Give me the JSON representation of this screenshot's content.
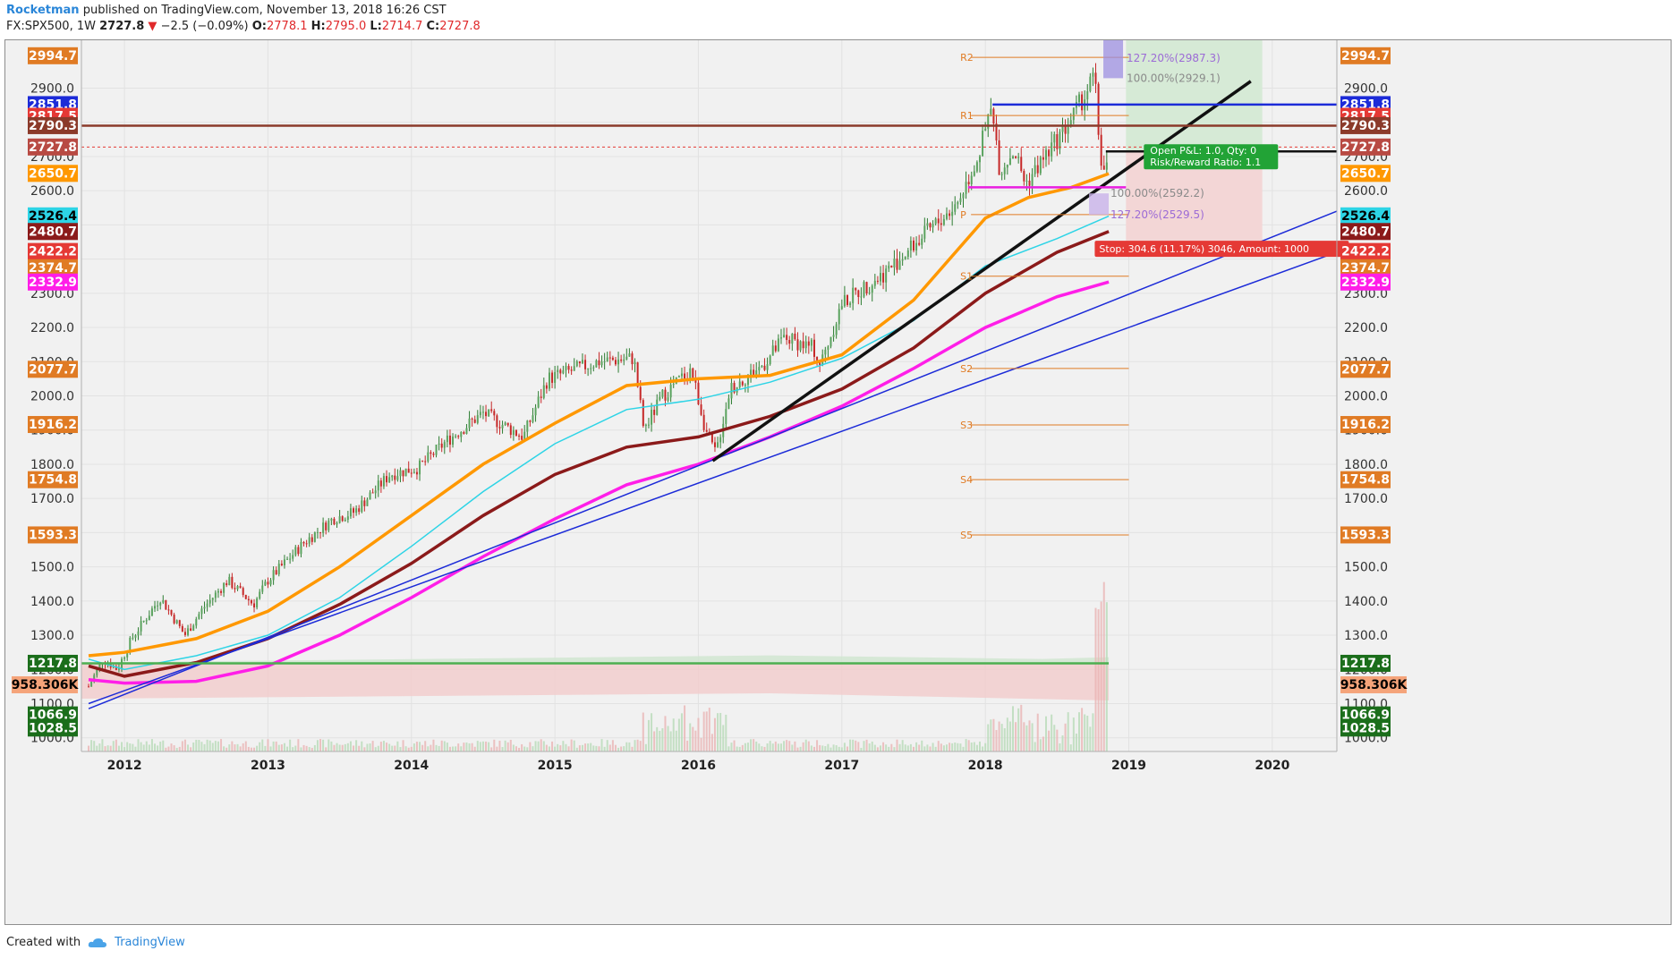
{
  "header": {
    "author": "Rocketman",
    "published": "published on TradingView.com, November 13, 2018 16:26 CST",
    "symbol": "FX:SPX500, 1W",
    "last": "2727.8",
    "change": "−2.5 (−0.09%)",
    "o_label": "O:",
    "o": "2778.1",
    "h_label": "H:",
    "h": "2795.0",
    "l_label": "L:",
    "l": "2714.7",
    "c_label": "C:",
    "c": "2727.8",
    "down_color": "#e0292b"
  },
  "footer": {
    "created_with": "Created with",
    "brand": "TradingView"
  },
  "chart_data": {
    "type": "candlestick",
    "title": "",
    "xlabel": "",
    "ylabel": "",
    "ylim": [
      960,
      3040
    ],
    "y_ticks": [
      "1000.0",
      "1100.0",
      "1200.0",
      "1300.0",
      "1400.0",
      "1500.0",
      "1600.0",
      "1700.0",
      "1800.0",
      "1900.0",
      "2000.0",
      "2100.0",
      "2200.0",
      "2300.0",
      "2400.0",
      "2500.0",
      "2600.0",
      "2700.0",
      "2800.0",
      "2900.0"
    ],
    "x_tick_labels": [
      "2012",
      "2013",
      "2014",
      "2015",
      "2016",
      "2017",
      "2018",
      "2019",
      "2020"
    ],
    "x_tick_years": [
      2012,
      2013,
      2014,
      2015,
      2016,
      2017,
      2018,
      2019,
      2020
    ],
    "x_range": [
      2011.7,
      2020.45
    ],
    "colors": {
      "up": "#2e7d32",
      "down": "#c62828",
      "grid": "#e2e2e2"
    },
    "price_anchors": [
      [
        2011.75,
        1150
      ],
      [
        2011.85,
        1230
      ],
      [
        2011.95,
        1200
      ],
      [
        2012.05,
        1290
      ],
      [
        2012.25,
        1410
      ],
      [
        2012.42,
        1300
      ],
      [
        2012.55,
        1380
      ],
      [
        2012.72,
        1460
      ],
      [
        2012.9,
        1390
      ],
      [
        2013.0,
        1460
      ],
      [
        2013.25,
        1570
      ],
      [
        2013.45,
        1640
      ],
      [
        2013.6,
        1660
      ],
      [
        2013.85,
        1770
      ],
      [
        2014.05,
        1790
      ],
      [
        2014.25,
        1870
      ],
      [
        2014.5,
        1950
      ],
      [
        2014.78,
        1880
      ],
      [
        2014.95,
        2050
      ],
      [
        2015.3,
        2100
      ],
      [
        2015.55,
        2110
      ],
      [
        2015.62,
        1900
      ],
      [
        2015.75,
        2000
      ],
      [
        2015.95,
        2080
      ],
      [
        2016.05,
        1900
      ],
      [
        2016.12,
        1830
      ],
      [
        2016.22,
        2020
      ],
      [
        2016.45,
        2090
      ],
      [
        2016.6,
        2170
      ],
      [
        2016.8,
        2140
      ],
      [
        2016.85,
        2090
      ],
      [
        2017.0,
        2270
      ],
      [
        2017.3,
        2360
      ],
      [
        2017.55,
        2460
      ],
      [
        2017.8,
        2560
      ],
      [
        2017.95,
        2700
      ],
      [
        2018.05,
        2850
      ],
      [
        2018.1,
        2660
      ],
      [
        2018.2,
        2720
      ],
      [
        2018.28,
        2620
      ],
      [
        2018.45,
        2720
      ],
      [
        2018.6,
        2810
      ],
      [
        2018.72,
        2900
      ],
      [
        2018.76,
        2940
      ],
      [
        2018.8,
        2700
      ],
      [
        2018.84,
        2640
      ],
      [
        2018.86,
        2730
      ]
    ],
    "series": [
      {
        "name": "",
        "color": "#ff9800",
        "points": [
          [
            2011.75,
            1240
          ],
          [
            2012.0,
            1250
          ],
          [
            2012.5,
            1290
          ],
          [
            2013.0,
            1370
          ],
          [
            2013.5,
            1500
          ],
          [
            2014.0,
            1650
          ],
          [
            2014.5,
            1800
          ],
          [
            2015.0,
            1920
          ],
          [
            2015.5,
            2030
          ],
          [
            2016.0,
            2050
          ],
          [
            2016.5,
            2060
          ],
          [
            2017.0,
            2120
          ],
          [
            2017.5,
            2280
          ],
          [
            2018.0,
            2520
          ],
          [
            2018.3,
            2580
          ],
          [
            2018.6,
            2610
          ],
          [
            2018.86,
            2650
          ]
        ]
      },
      {
        "name": "",
        "color": "#2dd4e6",
        "points": [
          [
            2011.75,
            1230
          ],
          [
            2012.0,
            1200
          ],
          [
            2012.5,
            1240
          ],
          [
            2013.0,
            1300
          ],
          [
            2013.5,
            1410
          ],
          [
            2014.0,
            1560
          ],
          [
            2014.5,
            1720
          ],
          [
            2015.0,
            1860
          ],
          [
            2015.5,
            1960
          ],
          [
            2016.0,
            1990
          ],
          [
            2016.5,
            2040
          ],
          [
            2017.0,
            2110
          ],
          [
            2017.5,
            2220
          ],
          [
            2018.0,
            2380
          ],
          [
            2018.5,
            2460
          ],
          [
            2018.86,
            2526
          ]
        ]
      },
      {
        "name": "",
        "color": "#8b1a1a",
        "points": [
          [
            2011.75,
            1210
          ],
          [
            2012.0,
            1180
          ],
          [
            2012.5,
            1220
          ],
          [
            2013.0,
            1290
          ],
          [
            2013.5,
            1390
          ],
          [
            2014.0,
            1510
          ],
          [
            2014.5,
            1650
          ],
          [
            2015.0,
            1770
          ],
          [
            2015.5,
            1850
          ],
          [
            2016.0,
            1880
          ],
          [
            2016.5,
            1940
          ],
          [
            2017.0,
            2020
          ],
          [
            2017.5,
            2140
          ],
          [
            2018.0,
            2300
          ],
          [
            2018.5,
            2420
          ],
          [
            2018.86,
            2481
          ]
        ]
      },
      {
        "name": "",
        "color": "#ff1ee8",
        "points": [
          [
            2011.75,
            1170
          ],
          [
            2012.0,
            1160
          ],
          [
            2012.5,
            1165
          ],
          [
            2013.0,
            1210
          ],
          [
            2013.5,
            1300
          ],
          [
            2014.0,
            1410
          ],
          [
            2014.5,
            1530
          ],
          [
            2015.0,
            1640
          ],
          [
            2015.5,
            1740
          ],
          [
            2016.0,
            1800
          ],
          [
            2016.5,
            1880
          ],
          [
            2017.0,
            1970
          ],
          [
            2017.5,
            2080
          ],
          [
            2018.0,
            2200
          ],
          [
            2018.5,
            2290
          ],
          [
            2018.86,
            2333
          ]
        ]
      }
    ],
    "trendlines": [
      {
        "color": "#1c2bd8",
        "from": [
          2011.75,
          1085
        ],
        "to": [
          2020.45,
          2540
        ]
      },
      {
        "color": "#1c2bd8",
        "from": [
          2011.75,
          1100
        ],
        "to": [
          2020.45,
          2420
        ]
      },
      {
        "color": "#111111",
        "from": [
          2016.1,
          1810
        ],
        "to": [
          2019.85,
          2920
        ]
      }
    ],
    "horizontal_lines": [
      {
        "price": 2790.3,
        "color": "#8b3a2a",
        "from": 2011.7,
        "to": 2020.45,
        "style": "solid"
      },
      {
        "price": 2727.8,
        "color": "#e53935",
        "from": 2011.7,
        "to": 2020.45,
        "style": "dashed"
      },
      {
        "price": 2851.8,
        "color": "#1c2bd8",
        "from": 2018.05,
        "to": 2020.45,
        "style": "solid"
      },
      {
        "price": 2715,
        "color": "#111111",
        "from": 2018.84,
        "to": 2020.45,
        "style": "solid"
      },
      {
        "price": 2610,
        "color": "#e91ee0",
        "from": 2017.88,
        "to": 2018.98,
        "style": "solid"
      },
      {
        "price": 1217.8,
        "color": "#4caf50",
        "from": 2011.7,
        "to": 2018.86,
        "style": "solid"
      }
    ],
    "pivots": [
      {
        "label": "R2",
        "price": 2990
      },
      {
        "label": "R1",
        "price": 2820
      },
      {
        "label": "P",
        "price": 2530
      },
      {
        "label": "S1",
        "price": 2350
      },
      {
        "label": "S2",
        "price": 2080
      },
      {
        "label": "S3",
        "price": 1915
      },
      {
        "label": "S4",
        "price": 1755
      },
      {
        "label": "S5",
        "price": 1593
      }
    ],
    "pivot_x_range": [
      2017.9,
      2019.0
    ],
    "fib_annotations": [
      {
        "text": "127.20%(2987.3)",
        "price": 2987.3,
        "color": "#9c6bd6"
      },
      {
        "text": "100.00%(2929.1)",
        "price": 2929.1,
        "color": "#8a8a8a"
      },
      {
        "text": "100.00%(2592.2)",
        "price": 2592.2,
        "color": "#8a8a8a"
      },
      {
        "text": "127.20%(2529.5)",
        "price": 2529.5,
        "color": "#9c6bd6"
      }
    ],
    "position": {
      "entry": 2715,
      "target": 3040,
      "stop": 2430,
      "x_from": 2018.98,
      "x_to": 2019.93,
      "pnl_text": "Open P&L: 1.0, Qty: 0",
      "rr_text": "Risk/Reward Ratio: 1.1",
      "stop_text": "Stop: 304.6 (11.17%) 3046, Amount: 1000"
    },
    "price_tags_left": [
      {
        "text": "2994.7",
        "price": 2994.7,
        "bg": "#e07b24",
        "fg": "#ffffff"
      },
      {
        "text": "2851.8",
        "price": 2851.8,
        "bg": "#1c2bd8",
        "fg": "#ffffff"
      },
      {
        "text": "2817.5",
        "price": 2817.5,
        "bg": "#e53935",
        "fg": "#ffffff"
      },
      {
        "text": "2790.3",
        "price": 2790.3,
        "bg": "#8b3a2a",
        "fg": "#ffffff"
      },
      {
        "text": "2727.8",
        "price": 2727.8,
        "bg": "#b84a43",
        "fg": "#ffffff"
      },
      {
        "text": "2650.7",
        "price": 2650.7,
        "bg": "#ff9800",
        "fg": "#ffffff"
      },
      {
        "text": "2526.4",
        "price": 2526.4,
        "bg": "#2dd4e6",
        "fg": "#000000"
      },
      {
        "text": "2480.7",
        "price": 2480.7,
        "bg": "#8b1a1a",
        "fg": "#ffffff"
      },
      {
        "text": "2422.2",
        "price": 2422.2,
        "bg": "#e53935",
        "fg": "#ffffff"
      },
      {
        "text": "2374.7",
        "price": 2374.7,
        "bg": "#e07b24",
        "fg": "#ffffff"
      },
      {
        "text": "2332.9",
        "price": 2332.9,
        "bg": "#ff1ee8",
        "fg": "#ffffff"
      },
      {
        "text": "2077.7",
        "price": 2077.7,
        "bg": "#e07b24",
        "fg": "#ffffff"
      },
      {
        "text": "1916.2",
        "price": 1916.2,
        "bg": "#e07b24",
        "fg": "#ffffff"
      },
      {
        "text": "1754.8",
        "price": 1754.8,
        "bg": "#e07b24",
        "fg": "#ffffff"
      },
      {
        "text": "1593.3",
        "price": 1593.3,
        "bg": "#e07b24",
        "fg": "#ffffff"
      },
      {
        "text": "1217.8",
        "price": 1217.8,
        "bg": "#1b6e1b",
        "fg": "#ffffff"
      },
      {
        "text": "958.306K",
        "price": 1155,
        "bg": "#f5a47a",
        "fg": "#000000"
      },
      {
        "text": "1066.9",
        "price": 1066.9,
        "bg": "#1b6e1b",
        "fg": "#ffffff"
      },
      {
        "text": "1028.5",
        "price": 1028.5,
        "bg": "#1b6e1b",
        "fg": "#ffffff"
      }
    ],
    "price_tags_right": [
      {
        "text": "2994.7",
        "price": 2994.7,
        "bg": "#e07b24",
        "fg": "#ffffff"
      },
      {
        "text": "2851.8",
        "price": 2851.8,
        "bg": "#1c2bd8",
        "fg": "#ffffff"
      },
      {
        "text": "2817.5",
        "price": 2817.5,
        "bg": "#e53935",
        "fg": "#ffffff"
      },
      {
        "text": "2790.3",
        "price": 2790.3,
        "bg": "#8b3a2a",
        "fg": "#ffffff"
      },
      {
        "text": "2727.8",
        "price": 2727.8,
        "bg": "#b84a43",
        "fg": "#ffffff"
      },
      {
        "text": "2650.7",
        "price": 2650.7,
        "bg": "#ff9800",
        "fg": "#ffffff"
      },
      {
        "text": "2526.4",
        "price": 2526.4,
        "bg": "#2dd4e6",
        "fg": "#000000"
      },
      {
        "text": "2480.7",
        "price": 2480.7,
        "bg": "#8b1a1a",
        "fg": "#ffffff"
      },
      {
        "text": "2422.2",
        "price": 2422.2,
        "bg": "#e53935",
        "fg": "#ffffff"
      },
      {
        "text": "2374.7",
        "price": 2374.7,
        "bg": "#e07b24",
        "fg": "#ffffff"
      },
      {
        "text": "2332.9",
        "price": 2332.9,
        "bg": "#ff1ee8",
        "fg": "#ffffff"
      },
      {
        "text": "2077.7",
        "price": 2077.7,
        "bg": "#e07b24",
        "fg": "#ffffff"
      },
      {
        "text": "1916.2",
        "price": 1916.2,
        "bg": "#e07b24",
        "fg": "#ffffff"
      },
      {
        "text": "1754.8",
        "price": 1754.8,
        "bg": "#e07b24",
        "fg": "#ffffff"
      },
      {
        "text": "1593.3",
        "price": 1593.3,
        "bg": "#e07b24",
        "fg": "#ffffff"
      },
      {
        "text": "1217.8",
        "price": 1217.8,
        "bg": "#1b6e1b",
        "fg": "#ffffff"
      },
      {
        "text": "958.306K",
        "price": 1155,
        "bg": "#f5a47a",
        "fg": "#000000"
      },
      {
        "text": "1066.9",
        "price": 1066.9,
        "bg": "#1b6e1b",
        "fg": "#ffffff"
      },
      {
        "text": "1028.5",
        "price": 1028.5,
        "bg": "#1b6e1b",
        "fg": "#ffffff"
      }
    ]
  }
}
